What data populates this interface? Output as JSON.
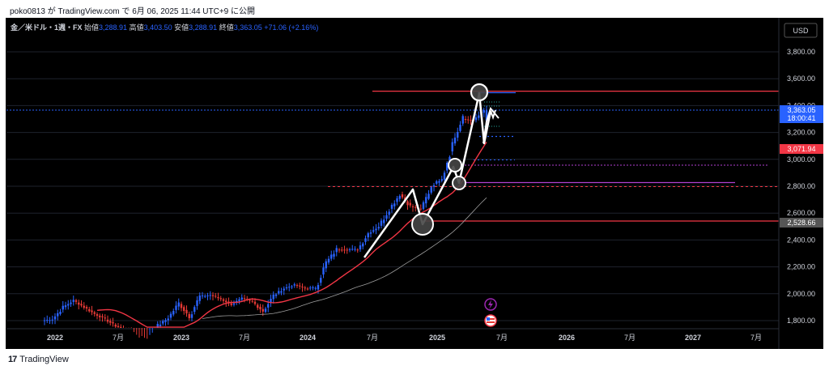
{
  "header": {
    "caption": "poko0813 が TradingView.com で 6月 06, 2025 11:44 UTC+9 に公開"
  },
  "footer": {
    "brand": "TradingView"
  },
  "icons": [
    "lightning-icon",
    "us-flag-icon",
    "tradingview-logo-icon"
  ],
  "chart_data": {
    "type": "candlestick",
    "symbol_text": "金／米ドル・1週・FX",
    "ohlc": [
      {
        "label": "始値",
        "value": "3,288.91"
      },
      {
        "label": "高値",
        "value": "3,403.50"
      },
      {
        "label": "安値",
        "value": "3,288.91"
      },
      {
        "label": "終値",
        "value": "3,363.05"
      }
    ],
    "change": "+71.06 (+2.16%)",
    "currency": "USD",
    "y_ticks": [
      "3,800.00",
      "3,600.00",
      "3,400.00",
      "3,200.00",
      "3,000.00",
      "2,800.00",
      "2,600.00",
      "2,400.00",
      "2,200.00",
      "2,000.00",
      "1,800.00"
    ],
    "ylim": [
      1760,
      4020
    ],
    "x_ticks": [
      "2022",
      "7月",
      "2023",
      "7月",
      "2024",
      "7月",
      "2025",
      "7月",
      "2026",
      "7月",
      "2027",
      "7月"
    ],
    "price_labels": [
      {
        "value": "3,363.05",
        "sub": "18:00:41",
        "color": "#2962ff"
      },
      {
        "value": "3,071.94",
        "color": "#f23645"
      },
      {
        "value": "2,528.66",
        "color": "#555555"
      }
    ],
    "colors": {
      "up": "#2962ff",
      "down": "#e53935",
      "ma_fast": "#f23645",
      "ma_slow": "#9e9e9e",
      "drawing": "#ffffff"
    },
    "series": [
      {
        "x": "2021-12",
        "y": 1800
      },
      {
        "x": "2022-01",
        "y": 1810
      },
      {
        "x": "2022-02",
        "y": 1900
      },
      {
        "x": "2022-03",
        "y": 1950
      },
      {
        "x": "2022-04",
        "y": 1900
      },
      {
        "x": "2022-05",
        "y": 1850
      },
      {
        "x": "2022-06",
        "y": 1810
      },
      {
        "x": "2022-07",
        "y": 1760
      },
      {
        "x": "2022-08",
        "y": 1730
      },
      {
        "x": "2022-09",
        "y": 1660
      },
      {
        "x": "2022-10",
        "y": 1640
      },
      {
        "x": "2022-11",
        "y": 1760
      },
      {
        "x": "2022-12",
        "y": 1820
      },
      {
        "x": "2023-01",
        "y": 1930
      },
      {
        "x": "2023-02",
        "y": 1830
      },
      {
        "x": "2023-03",
        "y": 1980
      },
      {
        "x": "2023-04",
        "y": 1990
      },
      {
        "x": "2023-05",
        "y": 1960
      },
      {
        "x": "2023-06",
        "y": 1920
      },
      {
        "x": "2023-07",
        "y": 1965
      },
      {
        "x": "2023-08",
        "y": 1940
      },
      {
        "x": "2023-09",
        "y": 1870
      },
      {
        "x": "2023-10",
        "y": 1985
      },
      {
        "x": "2023-11",
        "y": 2040
      },
      {
        "x": "2023-12",
        "y": 2065
      },
      {
        "x": "2024-01",
        "y": 2040
      },
      {
        "x": "2024-02",
        "y": 2045
      },
      {
        "x": "2024-03",
        "y": 2230
      },
      {
        "x": "2024-04",
        "y": 2330
      },
      {
        "x": "2024-05",
        "y": 2330
      },
      {
        "x": "2024-06",
        "y": 2330
      },
      {
        "x": "2024-07",
        "y": 2450
      },
      {
        "x": "2024-08",
        "y": 2500
      },
      {
        "x": "2024-09",
        "y": 2630
      },
      {
        "x": "2024-10",
        "y": 2740
      },
      {
        "x": "2024-11",
        "y": 2650
      },
      {
        "x": "2024-12",
        "y": 2625
      },
      {
        "x": "2025-01",
        "y": 2800
      },
      {
        "x": "2025-02",
        "y": 2860
      },
      {
        "x": "2025-03",
        "y": 3120
      },
      {
        "x": "2025-04",
        "y": 3300
      },
      {
        "x": "2025-05",
        "y": 3290
      },
      {
        "x": "2025-06",
        "y": 3363
      }
    ]
  }
}
